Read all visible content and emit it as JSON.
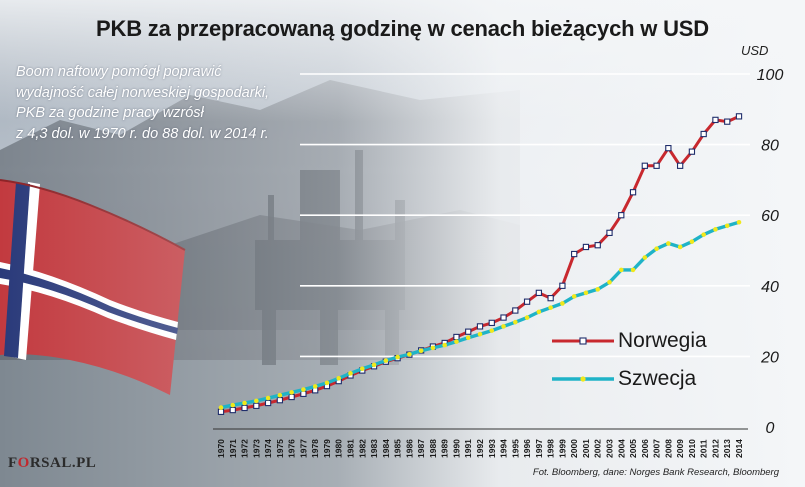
{
  "title": "PKB za przepracowaną godzinę w cenach bieżących w USD",
  "subtitle_lines": [
    "Boom naftowy pomógł poprawić",
    "wydajność całej norweskiej gospodarki,",
    "PKB za godzine pracy wzrósł",
    "z 4,3 dol. w 1970 r. do 88 dol. w 2014 r."
  ],
  "unit_label": "USD",
  "source": "Fot. Bloomberg, dane: Norges Bank Research, Bloomberg",
  "logo": {
    "text_before": "F",
    "text_o": "O",
    "text_after": "RSAL.PL"
  },
  "colors": {
    "norway_line": "#c8282e",
    "norway_marker_fill": "#ffffff",
    "norway_marker_edge": "#1f2d6b",
    "sweden_line": "#1fb3c7",
    "sweden_marker": "#f0e81c",
    "grid": "#ffffff"
  },
  "chart_data": {
    "type": "line",
    "x": [
      1970,
      1971,
      1972,
      1973,
      1974,
      1975,
      1976,
      1977,
      1978,
      1979,
      1980,
      1981,
      1982,
      1983,
      1984,
      1985,
      1986,
      1987,
      1988,
      1989,
      1990,
      1991,
      1992,
      1993,
      1994,
      1995,
      1996,
      1997,
      1998,
      1999,
      2000,
      2001,
      2002,
      2003,
      2004,
      2005,
      2006,
      2007,
      2008,
      2009,
      2010,
      2011,
      2012,
      2013,
      2014
    ],
    "series": [
      {
        "name": "Norwegia",
        "values": [
          4.3,
          4.8,
          5.4,
          6.0,
          6.8,
          7.6,
          8.5,
          9.4,
          10.4,
          11.6,
          13.0,
          14.6,
          16.0,
          17.2,
          18.5,
          19.5,
          20.5,
          21.7,
          22.8,
          23.8,
          25.5,
          27.0,
          28.5,
          29.5,
          31.0,
          33.0,
          35.5,
          38.0,
          36.5,
          40.0,
          49.0,
          51.0,
          51.5,
          55.0,
          60.0,
          66.5,
          74.0,
          74.0,
          79.0,
          74.0,
          78.0,
          83.0,
          87.0,
          86.5,
          88.0
        ]
      },
      {
        "name": "Szwecja",
        "values": [
          5.5,
          6.2,
          6.8,
          7.4,
          8.2,
          9.0,
          9.8,
          10.6,
          11.5,
          12.5,
          13.8,
          15.2,
          16.5,
          17.6,
          18.8,
          19.8,
          20.6,
          21.6,
          22.4,
          23.2,
          24.2,
          25.3,
          26.3,
          27.3,
          28.5,
          29.7,
          31.0,
          32.6,
          33.8,
          35.0,
          37.0,
          38.0,
          39.0,
          41.0,
          44.5,
          44.5,
          48.0,
          50.5,
          52.0,
          51.0,
          52.5,
          54.5,
          56.0,
          57.0,
          58.0
        ]
      }
    ],
    "y_ticks": [
      0,
      20,
      40,
      60,
      80,
      100
    ],
    "ylim": [
      0,
      100
    ],
    "grid": true,
    "legend": "bottom-right"
  }
}
